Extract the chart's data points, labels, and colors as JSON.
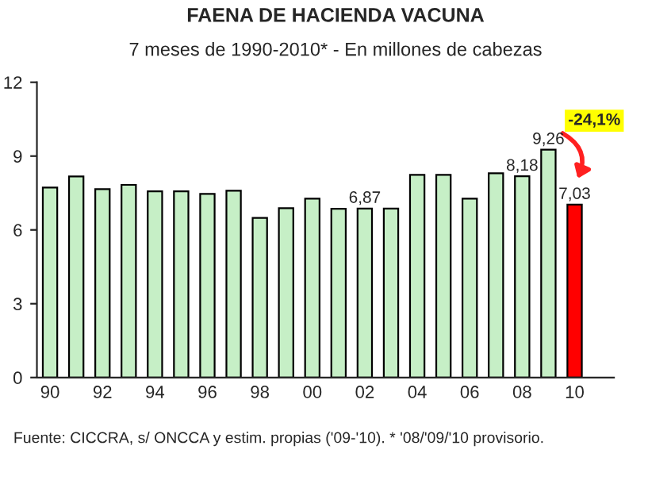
{
  "chart_data": {
    "type": "bar",
    "title": "FAENA DE HACIENDA VACUNA",
    "subtitle": "7 meses de 1990-2010* - En millones de cabezas",
    "categories": [
      "90",
      null,
      "92",
      null,
      "94",
      null,
      "96",
      null,
      "98",
      null,
      "00",
      null,
      "02",
      null,
      "04",
      null,
      "06",
      null,
      "08",
      null,
      "10"
    ],
    "values": [
      7.72,
      8.17,
      7.66,
      7.83,
      7.57,
      7.57,
      7.46,
      7.59,
      6.49,
      6.88,
      7.27,
      6.86,
      6.87,
      6.87,
      8.24,
      8.24,
      7.27,
      8.3,
      8.18,
      9.26,
      7.03
    ],
    "value_labels": [
      null,
      null,
      null,
      null,
      null,
      null,
      null,
      null,
      null,
      null,
      null,
      null,
      "6,87",
      null,
      null,
      null,
      null,
      null,
      "8,18",
      "9,26",
      "7,03"
    ],
    "colors": [
      "#c6efc6",
      "#c6efc6",
      "#c6efc6",
      "#c6efc6",
      "#c6efc6",
      "#c6efc6",
      "#c6efc6",
      "#c6efc6",
      "#c6efc6",
      "#c6efc6",
      "#c6efc6",
      "#c6efc6",
      "#c6efc6",
      "#c6efc6",
      "#c6efc6",
      "#c6efc6",
      "#c6efc6",
      "#c6efc6",
      "#c6efc6",
      "#c6efc6",
      "#ff0000"
    ],
    "ylim": [
      0,
      12
    ],
    "yticks": [
      0,
      3,
      6,
      9,
      12
    ],
    "grid": false,
    "legend": false,
    "annotations": [
      "-24,1%",
      "Fuente: CICCRA, s/ ONCCA y estim. propias ('09-'10). * '08/'09/'10 provisorio."
    ]
  }
}
